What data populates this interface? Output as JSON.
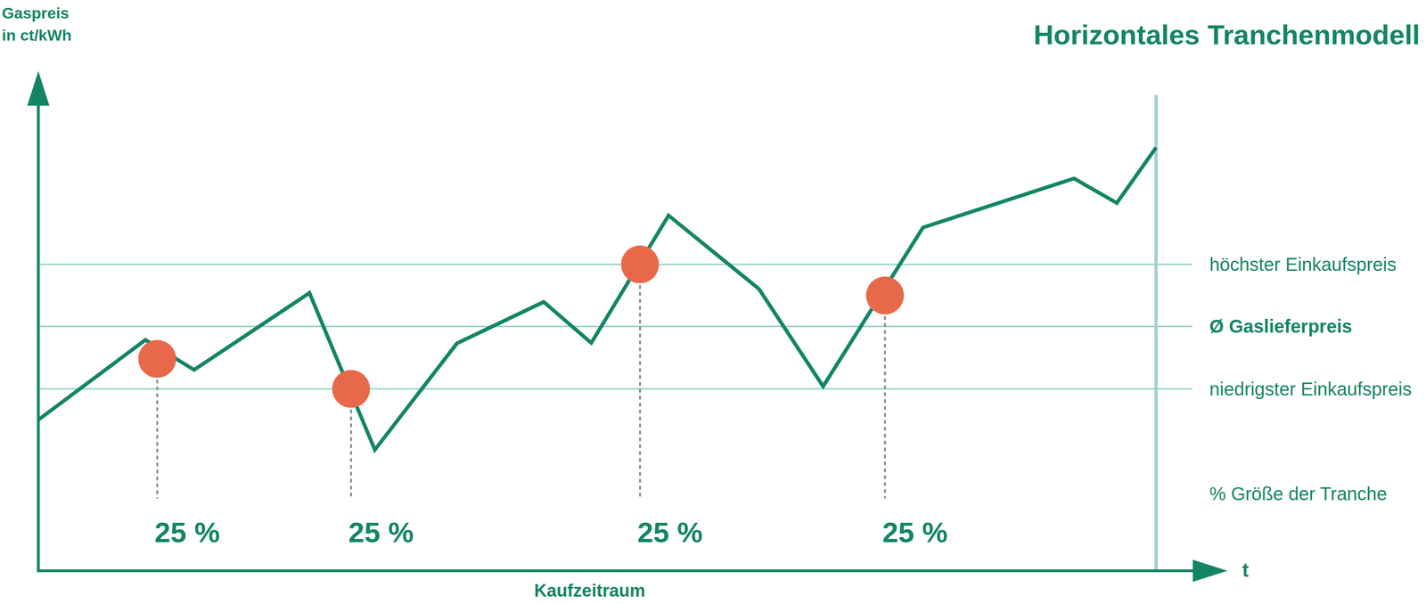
{
  "chart_data": {
    "type": "line",
    "title": "Horizontales Tranchenmodell",
    "y_label": "Gaspreis in ct/kWh",
    "x_label": "Kaufzeitraum",
    "x_axis_end_label": "t",
    "xlim": [
      0,
      100
    ],
    "ylim": [
      0,
      100
    ],
    "tick_labels": false,
    "grid": false,
    "x": [
      0,
      9.0,
      13.1,
      22.8,
      28.3,
      35.2,
      42.5,
      46.5,
      53.0,
      60.6,
      66.0,
      74.4,
      87.1,
      90.7,
      94.0
    ],
    "series": [
      {
        "type": "line",
        "color": "#138565",
        "values": [
          30.2,
          46.2,
          40.2,
          55.6,
          24.2,
          45.5,
          53.8,
          45.6,
          71.1,
          56.4,
          36.9,
          68.7,
          78.5,
          73.6,
          84.7
        ]
      }
    ],
    "tranches": {
      "type": "scatter",
      "color": "#e8694a",
      "x": [
        10.0,
        26.3,
        50.6,
        71.2
      ],
      "values": [
        42.4,
        36.4,
        61.3,
        55.1
      ],
      "sizes": [
        25,
        25,
        25,
        25
      ],
      "size_labels": [
        "25 %",
        "25 %",
        "25 %",
        "25 %"
      ]
    },
    "tranche_legend": "% Größe der Tranche",
    "reference_lines": [
      {
        "label": "höchster Einkaufspreis",
        "value": 61.3
      },
      {
        "label": "Ø Gaslieferpreis",
        "value": 48.9
      },
      {
        "label": "niedrigster Einkaufspreis",
        "value": 36.4
      }
    ],
    "period_end_x": 94.0
  }
}
